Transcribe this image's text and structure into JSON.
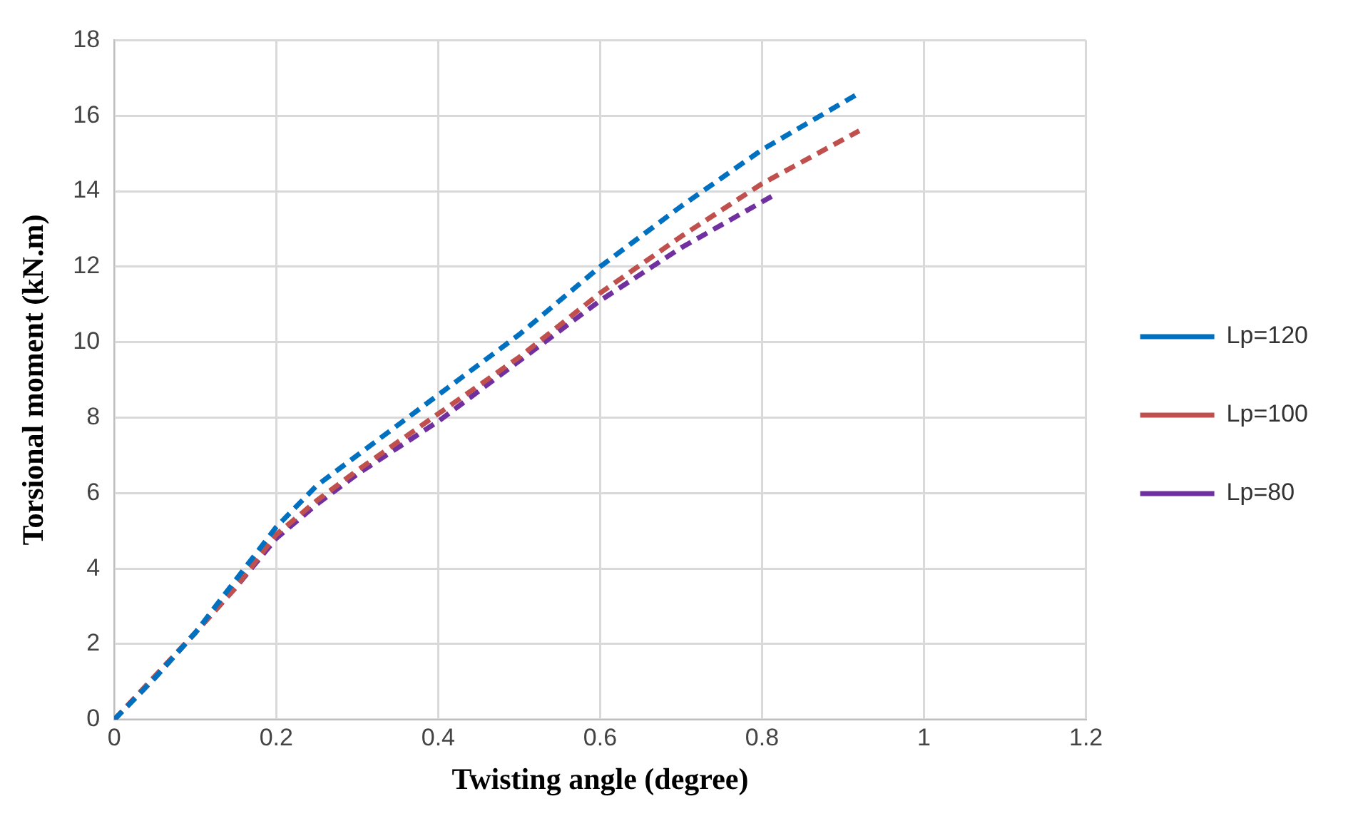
{
  "chart_data": {
    "type": "line",
    "xlabel": "Twisting angle (degree)",
    "ylabel": "Torsional moment (kN.m)",
    "xlim": [
      0,
      1.2
    ],
    "xticks": [
      0,
      0.2,
      0.4,
      0.6,
      0.8,
      1,
      1.2
    ],
    "ylim": [
      0,
      18
    ],
    "yticks": [
      0,
      2,
      4,
      6,
      8,
      10,
      12,
      14,
      16,
      18
    ],
    "grid": true,
    "legend": "right",
    "marker": "none",
    "line_style": "dashed",
    "series": [
      {
        "name": "Lp=120",
        "color": "#0070c0",
        "x": [
          0,
          0.05,
          0.1,
          0.15,
          0.2,
          0.25,
          0.3,
          0.4,
          0.5,
          0.6,
          0.7,
          0.8,
          0.92
        ],
        "values": [
          0,
          1.1,
          2.3,
          3.7,
          5.1,
          6.2,
          7.0,
          8.6,
          10.2,
          12.0,
          13.6,
          15.1,
          16.6
        ]
      },
      {
        "name": "Lp=100",
        "color": "#c0504d",
        "x": [
          0,
          0.1,
          0.15,
          0.2,
          0.25,
          0.3,
          0.4,
          0.5,
          0.6,
          0.7,
          0.8,
          0.92
        ],
        "values": [
          0,
          2.3,
          3.5,
          4.9,
          5.8,
          6.6,
          8.1,
          9.6,
          11.3,
          12.8,
          14.2,
          15.6
        ]
      },
      {
        "name": "Lp=80",
        "color": "#7030a0",
        "x": [
          0,
          0.05,
          0.1,
          0.15,
          0.2,
          0.25,
          0.3,
          0.4,
          0.5,
          0.6,
          0.7,
          0.815
        ],
        "values": [
          0,
          1.1,
          2.3,
          3.5,
          4.8,
          5.7,
          6.5,
          7.9,
          9.5,
          11.1,
          12.5,
          13.9
        ]
      }
    ]
  }
}
